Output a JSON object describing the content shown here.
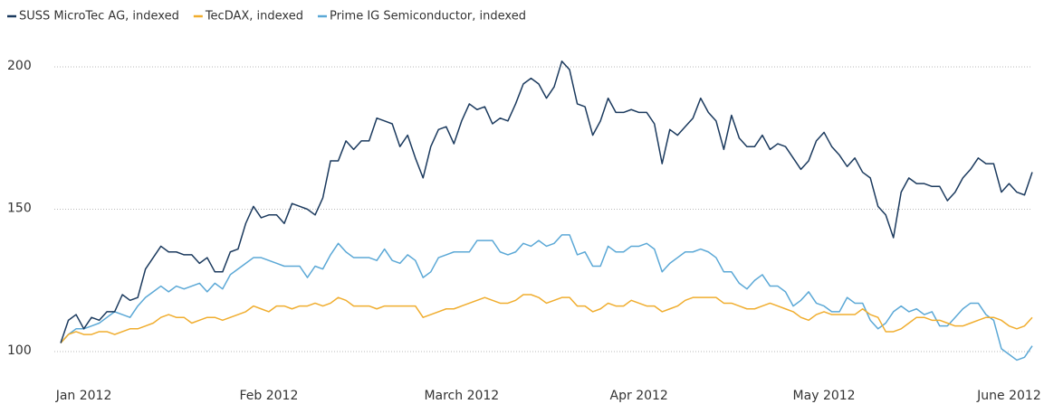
{
  "chart_data": {
    "type": "line",
    "categories": [
      null,
      null,
      null,
      "Jan 2012",
      null,
      null,
      null,
      null,
      null,
      null,
      null,
      null,
      null,
      null,
      null,
      null,
      null,
      null,
      null,
      null,
      null,
      null,
      null,
      null,
      null,
      null,
      null,
      "Feb 2012",
      null,
      null,
      null,
      null,
      null,
      null,
      null,
      null,
      null,
      null,
      null,
      null,
      null,
      null,
      null,
      null,
      null,
      null,
      null,
      null,
      null,
      null,
      null,
      null,
      "March 2012",
      null,
      null,
      null,
      null,
      null,
      null,
      null,
      null,
      null,
      null,
      null,
      null,
      null,
      null,
      null,
      null,
      null,
      null,
      null,
      null,
      null,
      null,
      "Apr 2012",
      null,
      null,
      null,
      null,
      null,
      null,
      null,
      null,
      null,
      null,
      null,
      null,
      null,
      null,
      null,
      null,
      null,
      null,
      null,
      null,
      null,
      null,
      null,
      "May 2012",
      null,
      null,
      null,
      null,
      null,
      null,
      null,
      null,
      null,
      null,
      null,
      null,
      null,
      null,
      null,
      null,
      null,
      null,
      null,
      null,
      null,
      null,
      null,
      "June 2012",
      null,
      null,
      null
    ],
    "series": [
      {
        "name": "SUSS MicroTec AG, indexed",
        "color": "#1b3a5e",
        "values": [
          103,
          111,
          113,
          108,
          112,
          111,
          114,
          114,
          120,
          118,
          119,
          129,
          133,
          137,
          135,
          135,
          134,
          134,
          131,
          133,
          128,
          128,
          135,
          136,
          145,
          151,
          147,
          148,
          148,
          145,
          152,
          151,
          150,
          148,
          154,
          167,
          167,
          174,
          171,
          174,
          174,
          182,
          181,
          180,
          172,
          176,
          168,
          161,
          172,
          178,
          179,
          173,
          181,
          187,
          185,
          186,
          180,
          182,
          181,
          187,
          194,
          196,
          194,
          189,
          193,
          202,
          199,
          187,
          186,
          176,
          181,
          189,
          184,
          184,
          185,
          184,
          184,
          180,
          166,
          178,
          176,
          179,
          182,
          189,
          184,
          181,
          171,
          183,
          175,
          172,
          172,
          176,
          171,
          173,
          172,
          168,
          164,
          167,
          174,
          177,
          172,
          169,
          165,
          168,
          163,
          161,
          151,
          148,
          140,
          156,
          161,
          159,
          159,
          158,
          158,
          153,
          156,
          161,
          164,
          168,
          166,
          166,
          156,
          159,
          156,
          155,
          163
        ]
      },
      {
        "name": "TecDAX, indexed",
        "color": "#f0ad2e",
        "values": [
          103,
          106,
          107,
          106,
          106,
          107,
          107,
          106,
          107,
          108,
          108,
          109,
          110,
          112,
          113,
          112,
          112,
          110,
          111,
          112,
          112,
          111,
          112,
          113,
          114,
          116,
          115,
          114,
          116,
          116,
          115,
          116,
          116,
          117,
          116,
          117,
          119,
          118,
          116,
          116,
          116,
          115,
          116,
          116,
          116,
          116,
          116,
          112,
          113,
          114,
          115,
          115,
          116,
          117,
          118,
          119,
          118,
          117,
          117,
          118,
          120,
          120,
          119,
          117,
          118,
          119,
          119,
          116,
          116,
          114,
          115,
          117,
          116,
          116,
          118,
          117,
          116,
          116,
          114,
          115,
          116,
          118,
          119,
          119,
          119,
          119,
          117,
          117,
          116,
          115,
          115,
          116,
          117,
          116,
          115,
          114,
          112,
          111,
          113,
          114,
          113,
          113,
          113,
          113,
          115,
          113,
          112,
          107,
          107,
          108,
          110,
          112,
          112,
          111,
          111,
          110,
          109,
          109,
          110,
          111,
          112,
          112,
          111,
          109,
          108,
          109,
          112
        ]
      },
      {
        "name": "Prime IG Semiconductor, indexed",
        "color": "#5ba8d6",
        "values": [
          103,
          106,
          108,
          108,
          109,
          110,
          112,
          114,
          113,
          112,
          116,
          119,
          121,
          123,
          121,
          123,
          122,
          123,
          124,
          121,
          124,
          122,
          127,
          129,
          131,
          133,
          133,
          132,
          131,
          130,
          130,
          130,
          126,
          130,
          129,
          134,
          138,
          135,
          133,
          133,
          133,
          132,
          136,
          132,
          131,
          134,
          132,
          126,
          128,
          133,
          134,
          135,
          135,
          135,
          139,
          139,
          139,
          135,
          134,
          135,
          138,
          137,
          139,
          137,
          138,
          141,
          141,
          134,
          135,
          130,
          130,
          137,
          135,
          135,
          137,
          137,
          138,
          136,
          128,
          131,
          133,
          135,
          135,
          136,
          135,
          133,
          128,
          128,
          124,
          122,
          125,
          127,
          123,
          123,
          121,
          116,
          118,
          121,
          117,
          116,
          114,
          114,
          119,
          117,
          117,
          111,
          108,
          110,
          114,
          116,
          114,
          115,
          113,
          114,
          109,
          109,
          112,
          115,
          117,
          117,
          113,
          111,
          101,
          99,
          97,
          98,
          102
        ]
      }
    ],
    "ylim": [
      95,
      205
    ],
    "yticks": [
      100,
      150,
      200
    ],
    "grid": true,
    "legend": "top-left"
  }
}
